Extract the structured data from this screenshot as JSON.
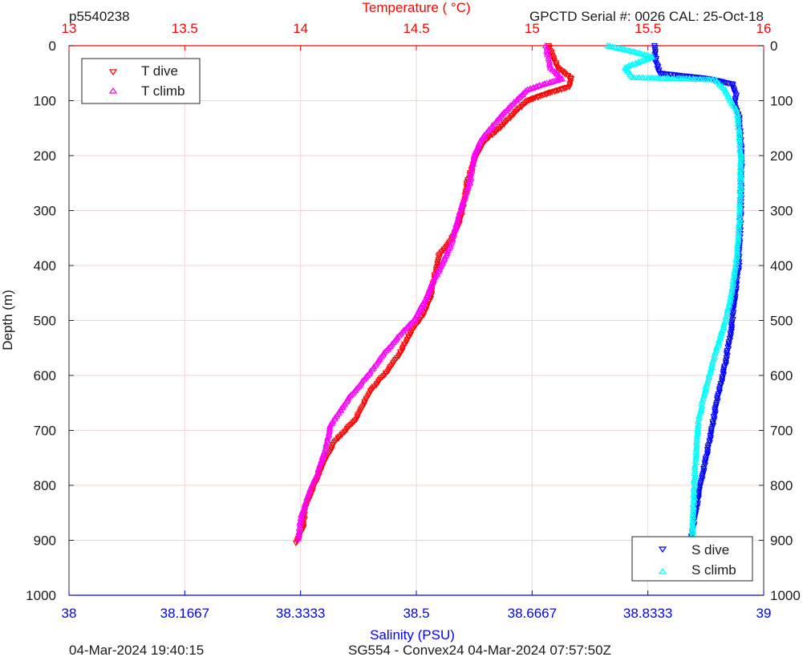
{
  "header": {
    "left": "p5540238",
    "right": "GPCTD Serial #: 0026 CAL: 25-Oct-18"
  },
  "footer": {
    "left": "04-Mar-2024 19:40:15",
    "center": "SG554 - Convex24 04-Mar-2024 07:57:50Z"
  },
  "colors": {
    "temperature_axis": "#ff0000",
    "salinity_axis": "#0000ff",
    "t_dive": "#ff0000",
    "t_climb": "#ff00ff",
    "s_dive": "#0000ff",
    "s_climb": "#00ffff",
    "grid": "#f2d3d3"
  },
  "legend_temperature": {
    "items": [
      {
        "label": "T dive",
        "marker": "triangle-down",
        "color": "#ff0000"
      },
      {
        "label": "T climb",
        "marker": "triangle-up",
        "color": "#ff00ff"
      }
    ]
  },
  "legend_salinity": {
    "items": [
      {
        "label": "S dive",
        "marker": "triangle-down",
        "color": "#0000ff"
      },
      {
        "label": "S climb",
        "marker": "triangle-up",
        "color": "#00ffff"
      }
    ]
  },
  "chart_data": {
    "type": "scatter",
    "title": "",
    "grid": true,
    "y_axis": {
      "label": "Depth (m)",
      "range": [
        0,
        1000
      ],
      "reversed": true,
      "ticks": [
        "0",
        "100",
        "200",
        "300",
        "400",
        "500",
        "600",
        "700",
        "800",
        "900",
        "1000"
      ],
      "tick_values": [
        0,
        100,
        200,
        300,
        400,
        500,
        600,
        700,
        800,
        900,
        1000
      ]
    },
    "x_top_axis": {
      "label": "Temperature (    °C)",
      "range": [
        13,
        16
      ],
      "ticks": [
        "13",
        "13.5",
        "14",
        "14.5",
        "15",
        "15.5",
        "16"
      ],
      "tick_values": [
        13,
        13.5,
        14,
        14.5,
        15,
        15.5,
        16
      ]
    },
    "x_bottom_axis": {
      "label": "Salinity (PSU)",
      "range": [
        38,
        39
      ],
      "ticks": [
        "38",
        "38.1667",
        "38.3333",
        "38.5",
        "38.6667",
        "38.8333",
        "39"
      ],
      "tick_values": [
        38,
        38.1667,
        38.3333,
        38.5,
        38.6667,
        38.8333,
        39
      ]
    },
    "legends": [
      "top-left",
      "bottom-right"
    ],
    "series": [
      {
        "name": "T dive",
        "axis": "temperature",
        "color": "#ff0000",
        "marker": "triangle-down",
        "points": [
          [
            15.07,
            0
          ],
          [
            15.09,
            20
          ],
          [
            15.11,
            40
          ],
          [
            15.17,
            60
          ],
          [
            15.16,
            75
          ],
          [
            15.08,
            85
          ],
          [
            14.98,
            100
          ],
          [
            14.93,
            120
          ],
          [
            14.86,
            150
          ],
          [
            14.79,
            175
          ],
          [
            14.76,
            200
          ],
          [
            14.72,
            250
          ],
          [
            14.7,
            300
          ],
          [
            14.68,
            330
          ],
          [
            14.64,
            360
          ],
          [
            14.6,
            380
          ],
          [
            14.58,
            420
          ],
          [
            14.56,
            460
          ],
          [
            14.53,
            490
          ],
          [
            14.48,
            520
          ],
          [
            14.43,
            560
          ],
          [
            14.38,
            590
          ],
          [
            14.3,
            630
          ],
          [
            14.24,
            680
          ],
          [
            14.15,
            720
          ],
          [
            14.1,
            760
          ],
          [
            14.06,
            800
          ],
          [
            14.02,
            840
          ],
          [
            14.01,
            880
          ],
          [
            13.98,
            905
          ]
        ]
      },
      {
        "name": "T climb",
        "axis": "temperature",
        "color": "#ff00ff",
        "marker": "triangle-up",
        "points": [
          [
            15.06,
            0
          ],
          [
            15.07,
            20
          ],
          [
            15.08,
            40
          ],
          [
            15.13,
            60
          ],
          [
            15.05,
            70
          ],
          [
            14.98,
            80
          ],
          [
            14.93,
            100
          ],
          [
            14.86,
            130
          ],
          [
            14.82,
            150
          ],
          [
            14.78,
            170
          ],
          [
            14.75,
            200
          ],
          [
            14.73,
            250
          ],
          [
            14.69,
            300
          ],
          [
            14.65,
            360
          ],
          [
            14.62,
            390
          ],
          [
            14.57,
            430
          ],
          [
            14.54,
            460
          ],
          [
            14.49,
            500
          ],
          [
            14.44,
            520
          ],
          [
            14.36,
            560
          ],
          [
            14.29,
            600
          ],
          [
            14.21,
            640
          ],
          [
            14.13,
            690
          ],
          [
            14.11,
            730
          ],
          [
            14.07,
            780
          ],
          [
            14.03,
            820
          ],
          [
            14.0,
            860
          ],
          [
            13.99,
            900
          ]
        ]
      },
      {
        "name": "S dive",
        "axis": "salinity",
        "color": "#0000ff",
        "marker": "triangle-down",
        "points": [
          [
            38.843,
            0
          ],
          [
            38.845,
            30
          ],
          [
            38.85,
            50
          ],
          [
            38.92,
            60
          ],
          [
            38.955,
            70
          ],
          [
            38.96,
            90
          ],
          [
            38.958,
            110
          ],
          [
            38.965,
            130
          ],
          [
            38.968,
            200
          ],
          [
            38.967,
            300
          ],
          [
            38.964,
            400
          ],
          [
            38.958,
            460
          ],
          [
            38.953,
            520
          ],
          [
            38.945,
            580
          ],
          [
            38.934,
            640
          ],
          [
            38.925,
            700
          ],
          [
            38.916,
            760
          ],
          [
            38.906,
            820
          ],
          [
            38.898,
            880
          ],
          [
            38.895,
            905
          ]
        ]
      },
      {
        "name": "S climb",
        "axis": "salinity",
        "color": "#00ffff",
        "marker": "triangle-up",
        "points": [
          [
            38.775,
            0
          ],
          [
            38.81,
            10
          ],
          [
            38.84,
            20
          ],
          [
            38.8,
            40
          ],
          [
            38.812,
            58
          ],
          [
            38.88,
            60
          ],
          [
            38.93,
            62
          ],
          [
            38.945,
            80
          ],
          [
            38.952,
            100
          ],
          [
            38.962,
            120
          ],
          [
            38.967,
            200
          ],
          [
            38.966,
            300
          ],
          [
            38.96,
            400
          ],
          [
            38.952,
            460
          ],
          [
            38.945,
            500
          ],
          [
            38.93,
            560
          ],
          [
            38.917,
            620
          ],
          [
            38.906,
            680
          ],
          [
            38.903,
            740
          ],
          [
            38.9,
            800
          ],
          [
            38.898,
            860
          ],
          [
            38.897,
            905
          ]
        ]
      }
    ]
  }
}
